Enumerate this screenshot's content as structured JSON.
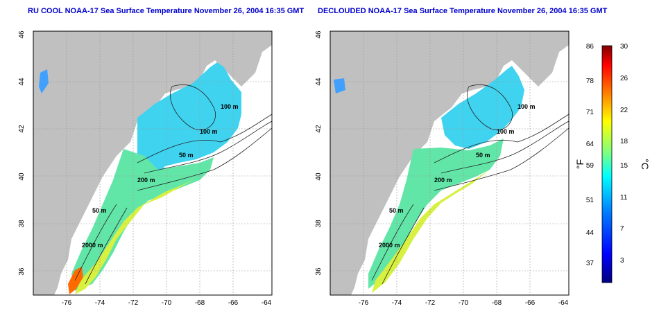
{
  "panels": [
    {
      "title": "RU COOL NOAA-17 Sea Surface Temperature November 26, 2004 16:35 GMT",
      "contour_labels": [
        "100 m",
        "100 m",
        "50 m",
        "200 m",
        "50 m",
        "2000 m"
      ]
    },
    {
      "title": "DECLOUDED NOAA-17 Sea Surface Temperature November 26, 2004 16:35 GMT",
      "contour_labels": [
        "100 m",
        "100 m",
        "50 m",
        "200 m",
        "50 m",
        "2000 m"
      ]
    }
  ],
  "map_axes": {
    "x_ticks": [
      "-76",
      "-74",
      "-72",
      "-70",
      "-68",
      "-66",
      "-64"
    ],
    "y_ticks": [
      "36",
      "38",
      "40",
      "42",
      "44",
      "46"
    ]
  },
  "colorbar": {
    "f_ticks": [
      "86",
      "78",
      "71",
      "64",
      "59",
      "51",
      "44",
      "37"
    ],
    "c_ticks": [
      "30",
      "26",
      "22",
      "18",
      "15",
      "11",
      "7",
      "3"
    ],
    "f_label": "°F",
    "c_label": "°C",
    "gradient": [
      "#00007f",
      "#0000ff",
      "#007fff",
      "#00ffff",
      "#7fff7f",
      "#ffff00",
      "#ff7f00",
      "#ff0000",
      "#7f0000"
    ]
  },
  "colors": {
    "land": "#c0c0c0",
    "title": "#0000cc"
  }
}
